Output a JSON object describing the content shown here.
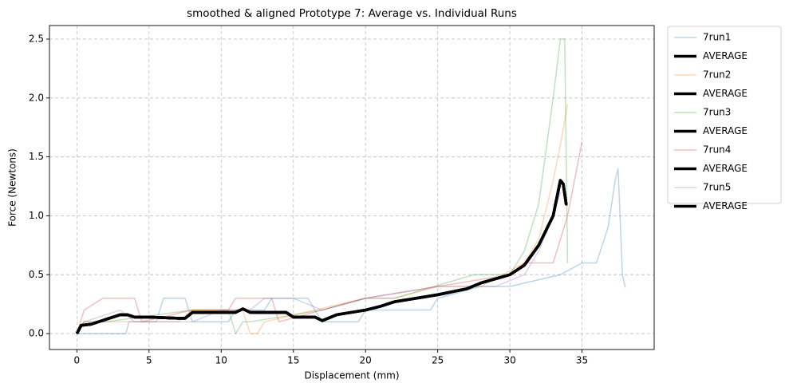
{
  "chart_data": {
    "type": "line",
    "title": "smoothed & aligned Prototype 7: Average vs. Individual Runs",
    "x_label": "Displacement (mm)",
    "y_label": "Force (Newtons)",
    "xlim": [
      -1.9,
      40
    ],
    "ylim": [
      -0.135,
      2.615
    ],
    "xticks": [
      0,
      5,
      10,
      15,
      20,
      25,
      30,
      35
    ],
    "yticks": [
      {
        "value": 0,
        "label": "0.0"
      },
      0.5,
      {
        "value": 1,
        "label": "1.0"
      },
      1.5,
      {
        "value": 2,
        "label": "2.0"
      },
      2.5
    ],
    "grid": true,
    "legend": "outside upper right",
    "series": [
      {
        "name": "7run1",
        "color": "#1f77b4",
        "opacity": 0.3,
        "width": 1.5,
        "x": [
          0,
          0.5,
          3.4,
          3.6,
          5.5,
          6,
          7.5,
          8,
          10.5,
          11,
          13,
          13.5,
          14,
          15,
          16,
          17,
          19.5,
          20,
          24.5,
          25,
          28,
          30,
          33.5,
          35,
          36,
          36.8,
          37.3,
          37.5,
          37.8,
          38
        ],
        "values": [
          0,
          0,
          0,
          0.1,
          0.1,
          0.3,
          0.3,
          0.1,
          0.1,
          0.2,
          0.2,
          0.3,
          0.3,
          0.3,
          0.3,
          0.1,
          0.1,
          0.2,
          0.2,
          0.3,
          0.4,
          0.4,
          0.5,
          0.6,
          0.6,
          0.9,
          1.3,
          1.4,
          0.5,
          0.39
        ]
      },
      {
        "name": "AVERAGE",
        "color": "#000000",
        "opacity": 1,
        "width": 3.5,
        "x": [
          0,
          0.3,
          1,
          2,
          3,
          3.5,
          4,
          5,
          7,
          7.5,
          8,
          11,
          11.5,
          12,
          14.5,
          15,
          16.5,
          17,
          18,
          20,
          21,
          22,
          25,
          27,
          28,
          30,
          31,
          32,
          33,
          33.5,
          33.7,
          33.9,
          34
        ],
        "values": [
          0,
          0.07,
          0.08,
          0.12,
          0.16,
          0.16,
          0.14,
          0.14,
          0.13,
          0.13,
          0.18,
          0.18,
          0.21,
          0.18,
          0.18,
          0.14,
          0.14,
          0.11,
          0.16,
          0.2,
          0.23,
          0.27,
          0.33,
          0.38,
          0.43,
          0.5,
          0.58,
          0.75,
          1.0,
          1.3,
          1.27,
          1.1,
          1.1
        ]
      },
      {
        "name": "7run2",
        "color": "#ff7f0e",
        "opacity": 0.3,
        "width": 1.5,
        "x": [
          0,
          0.5,
          7,
          8,
          11.5,
          12,
          12.5,
          13,
          20,
          22,
          25,
          28,
          31,
          32,
          33,
          33.5,
          34
        ],
        "values": [
          0,
          0.1,
          0.1,
          0.2,
          0.2,
          0,
          0,
          0.1,
          0.3,
          0.3,
          0.4,
          0.4,
          0.6,
          0.8,
          1.3,
          1.6,
          1.95
        ]
      },
      {
        "name": "AVERAGE",
        "color": "#000000",
        "opacity": 1,
        "width": 3.5,
        "x": [
          0,
          0.3,
          1,
          2,
          3,
          3.5,
          4,
          5,
          7,
          7.5,
          8,
          11,
          11.5,
          12,
          14.5,
          15,
          16.5,
          17,
          18,
          20,
          21,
          22,
          25,
          27,
          28,
          30,
          31,
          32,
          33,
          33.5,
          33.7,
          33.9,
          34
        ],
        "values": [
          0,
          0.07,
          0.08,
          0.12,
          0.16,
          0.16,
          0.14,
          0.14,
          0.13,
          0.13,
          0.18,
          0.18,
          0.21,
          0.18,
          0.18,
          0.14,
          0.14,
          0.11,
          0.16,
          0.2,
          0.23,
          0.27,
          0.33,
          0.38,
          0.43,
          0.5,
          0.58,
          0.75,
          1.0,
          1.3,
          1.27,
          1.1,
          1.1
        ]
      },
      {
        "name": "7run3",
        "color": "#2ca02c",
        "opacity": 0.3,
        "width": 1.5,
        "x": [
          0,
          0.5,
          2,
          8,
          10.5,
          11,
          11.5,
          12,
          17,
          20,
          22,
          27.5,
          30,
          31,
          32,
          33,
          33.5,
          33.8,
          34
        ],
        "values": [
          0,
          0.1,
          0.1,
          0.2,
          0.2,
          0,
          0.1,
          0.1,
          0.2,
          0.3,
          0.3,
          0.5,
          0.5,
          0.7,
          1.1,
          2.0,
          2.5,
          2.5,
          0.6
        ]
      },
      {
        "name": "AVERAGE",
        "color": "#000000",
        "opacity": 1,
        "width": 3.5,
        "x": [
          0,
          0.3,
          1,
          2,
          3,
          3.5,
          4,
          5,
          7,
          7.5,
          8,
          11,
          11.5,
          12,
          14.5,
          15,
          16.5,
          17,
          18,
          20,
          21,
          22,
          25,
          27,
          28,
          30,
          31,
          32,
          33,
          33.5,
          33.7,
          33.9,
          34
        ],
        "values": [
          0,
          0.07,
          0.08,
          0.12,
          0.16,
          0.16,
          0.14,
          0.14,
          0.13,
          0.13,
          0.18,
          0.18,
          0.21,
          0.18,
          0.18,
          0.14,
          0.14,
          0.11,
          0.16,
          0.2,
          0.23,
          0.27,
          0.33,
          0.38,
          0.43,
          0.5,
          0.58,
          0.75,
          1.0,
          1.3,
          1.27,
          1.1,
          1.1
        ]
      },
      {
        "name": "7run4",
        "color": "#d62728",
        "opacity": 0.3,
        "width": 1.5,
        "x": [
          0,
          0.5,
          1.8,
          4,
          4.5,
          8,
          10.5,
          11,
          13.5,
          14,
          17,
          20,
          25,
          30,
          31,
          33,
          34,
          35
        ],
        "values": [
          0,
          0.2,
          0.3,
          0.3,
          0.1,
          0.2,
          0.2,
          0.3,
          0.3,
          0.1,
          0.2,
          0.3,
          0.4,
          0.5,
          0.6,
          0.6,
          1.0,
          1.63
        ]
      },
      {
        "name": "AVERAGE",
        "color": "#000000",
        "opacity": 1,
        "width": 3.5,
        "x": [
          0,
          0.3,
          1,
          2,
          3,
          3.5,
          4,
          5,
          7,
          7.5,
          8,
          11,
          11.5,
          12,
          14.5,
          15,
          16.5,
          17,
          18,
          20,
          21,
          22,
          25,
          27,
          28,
          30,
          31,
          32,
          33,
          33.5,
          33.7,
          33.9,
          34
        ],
        "values": [
          0,
          0.07,
          0.08,
          0.12,
          0.16,
          0.16,
          0.14,
          0.14,
          0.13,
          0.13,
          0.18,
          0.18,
          0.21,
          0.18,
          0.18,
          0.14,
          0.14,
          0.11,
          0.16,
          0.2,
          0.23,
          0.27,
          0.33,
          0.38,
          0.43,
          0.5,
          0.58,
          0.75,
          1.0,
          1.3,
          1.27,
          1.1,
          1.1
        ]
      },
      {
        "name": "7run5",
        "color": "#9467bd",
        "opacity": 0.3,
        "width": 1.5,
        "x": [
          0,
          0.5,
          3,
          4,
          8,
          10,
          12,
          13,
          15,
          17,
          20,
          25,
          29,
          31,
          32,
          33,
          33.5
        ],
        "values": [
          0,
          0.1,
          0.2,
          0.1,
          0.1,
          0.2,
          0.2,
          0.3,
          0.3,
          0.2,
          0.3,
          0.4,
          0.4,
          0.5,
          0.7,
          1.0,
          1.2
        ]
      },
      {
        "name": "AVERAGE",
        "color": "#000000",
        "opacity": 1,
        "width": 3.5,
        "x": [
          0,
          0.3,
          1,
          2,
          3,
          3.5,
          4,
          5,
          7,
          7.5,
          8,
          11,
          11.5,
          12,
          14.5,
          15,
          16.5,
          17,
          18,
          20,
          21,
          22,
          25,
          27,
          28,
          30,
          31,
          32,
          33,
          33.5,
          33.7,
          33.9,
          34
        ],
        "values": [
          0,
          0.07,
          0.08,
          0.12,
          0.16,
          0.16,
          0.14,
          0.14,
          0.13,
          0.13,
          0.18,
          0.18,
          0.21,
          0.18,
          0.18,
          0.14,
          0.14,
          0.11,
          0.16,
          0.2,
          0.23,
          0.27,
          0.33,
          0.38,
          0.43,
          0.5,
          0.58,
          0.75,
          1.0,
          1.3,
          1.27,
          1.1,
          1.1
        ]
      }
    ]
  }
}
